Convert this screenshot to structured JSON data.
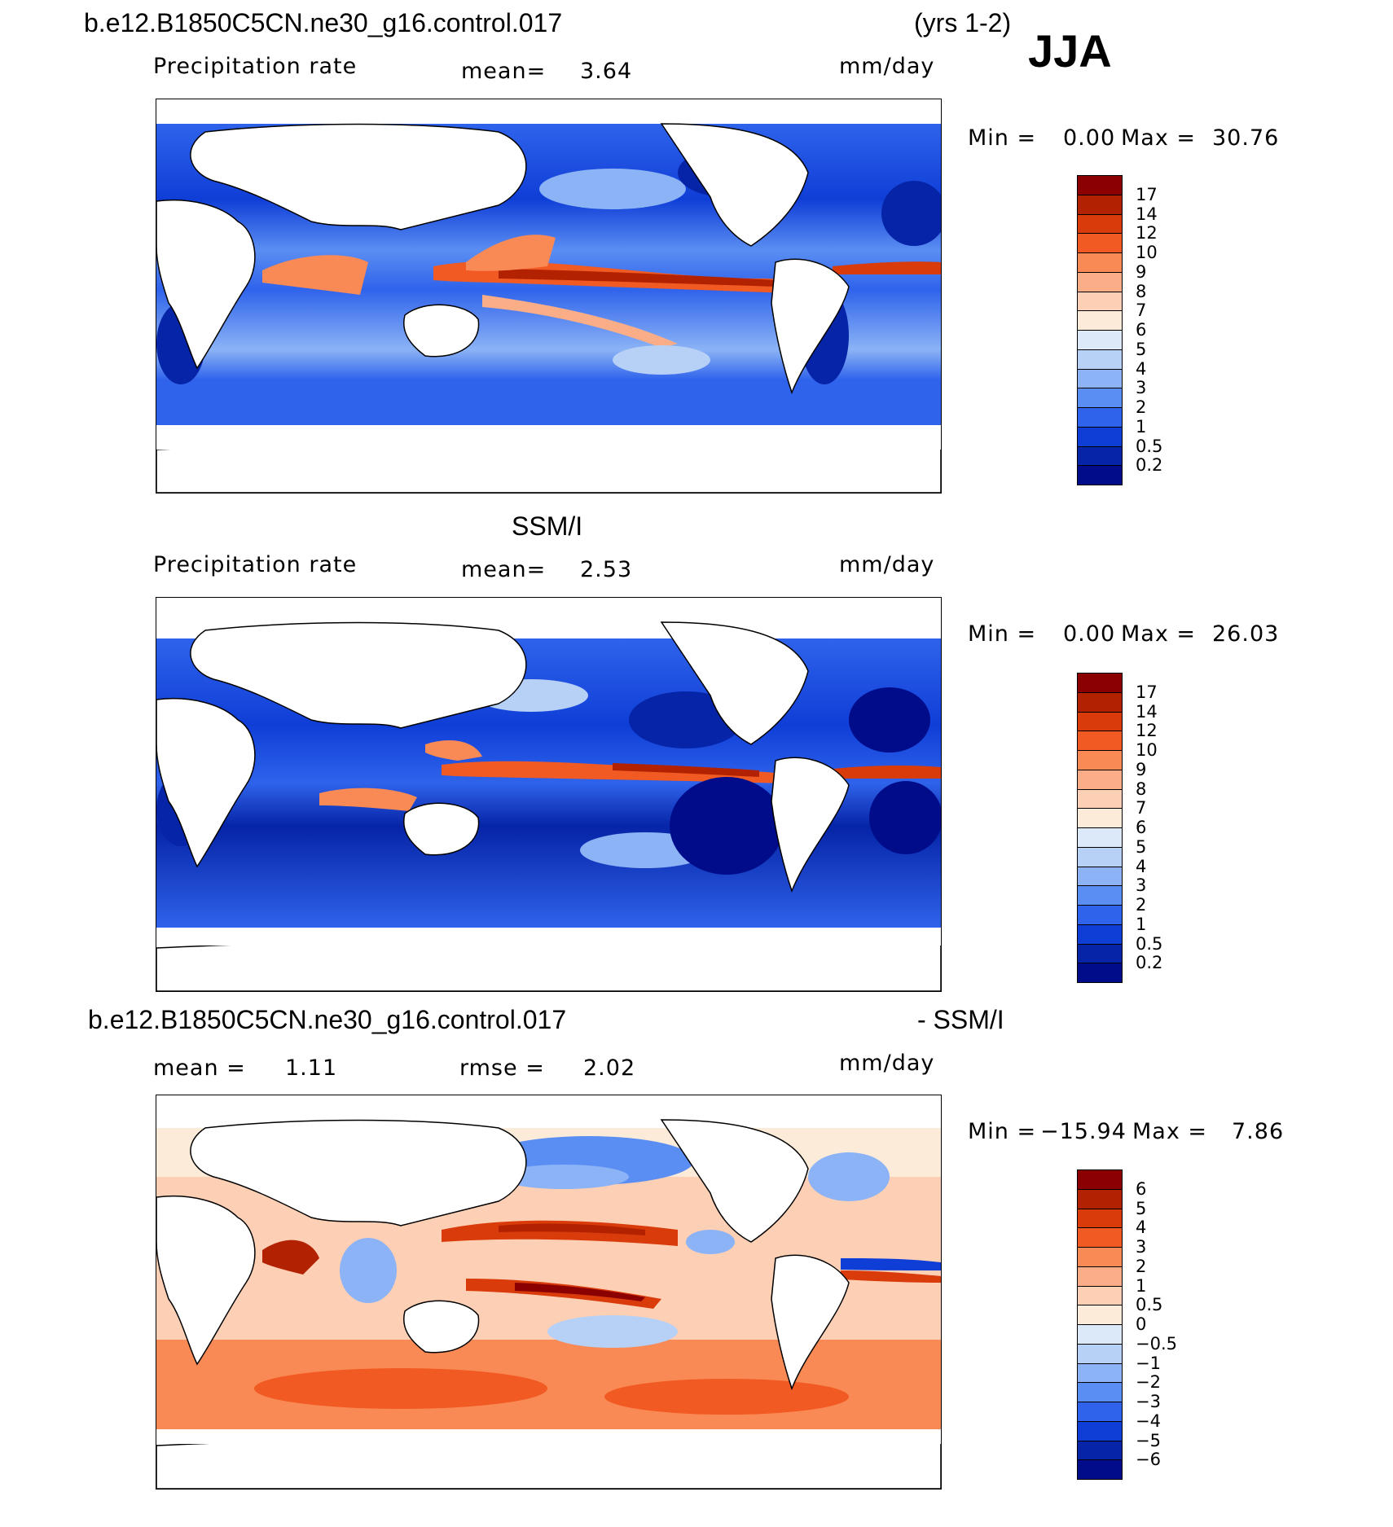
{
  "header": {
    "case_name": "b.e12.B1850C5CN.ne30_g16.control.017",
    "years": "(yrs 1-2)",
    "season": "JJA"
  },
  "panels": [
    {
      "id": "model",
      "subtitle": "",
      "variable": "Precipitation rate",
      "mean_label": "mean=",
      "mean_value": "3.64",
      "units": "mm/day",
      "min_label": "Min =",
      "min_value": "0.00",
      "max_label": "Max =",
      "max_value": "30.76",
      "colorbar": {
        "labels": [
          "17",
          "14",
          "12",
          "10",
          "9",
          "8",
          "7",
          "6",
          "5",
          "4",
          "3",
          "2",
          "1",
          "0.5",
          "0.2"
        ],
        "colors": [
          "#8b0000",
          "#b22200",
          "#d93b0a",
          "#f15a22",
          "#f98a55",
          "#fbad88",
          "#fdd0b6",
          "#fdebda",
          "#dce9f8",
          "#b6d0f6",
          "#8bb3f6",
          "#5b8ef2",
          "#2f63eb",
          "#0f3ed7",
          "#0624a7",
          "#000c8a"
        ]
      }
    },
    {
      "id": "obs",
      "subtitle": "SSM/I",
      "variable": "Precipitation rate",
      "mean_label": "mean=",
      "mean_value": "2.53",
      "units": "mm/day",
      "min_label": "Min =",
      "min_value": "0.00",
      "max_label": "Max =",
      "max_value": "26.03",
      "colorbar": {
        "labels": [
          "17",
          "14",
          "12",
          "10",
          "9",
          "8",
          "7",
          "6",
          "5",
          "4",
          "3",
          "2",
          "1",
          "0.5",
          "0.2"
        ],
        "colors": [
          "#8b0000",
          "#b22200",
          "#d93b0a",
          "#f15a22",
          "#f98a55",
          "#fbad88",
          "#fdd0b6",
          "#fdebda",
          "#dce9f8",
          "#b6d0f6",
          "#8bb3f6",
          "#5b8ef2",
          "#2f63eb",
          "#0f3ed7",
          "#0624a7",
          "#000c8a"
        ]
      }
    },
    {
      "id": "diff",
      "title_left": "b.e12.B1850C5CN.ne30_g16.control.017",
      "title_right": "- SSM/I",
      "mean_label": "mean =",
      "mean_value": "1.11",
      "rmse_label": "rmse =",
      "rmse_value": "2.02",
      "units": "mm/day",
      "min_label": "Min =",
      "min_value": "−15.94",
      "max_label": "Max =",
      "max_value": "7.86",
      "colorbar": {
        "labels": [
          "6",
          "5",
          "4",
          "3",
          "2",
          "1",
          "0.5",
          "0",
          "−0.5",
          "−1",
          "−2",
          "−3",
          "−4",
          "−5",
          "−6"
        ],
        "colors": [
          "#8b0000",
          "#b22200",
          "#d93b0a",
          "#f15a22",
          "#f98a55",
          "#fbad88",
          "#fdd0b6",
          "#fdebda",
          "#dce9f8",
          "#b6d0f6",
          "#8bb3f6",
          "#5b8ef2",
          "#2f63eb",
          "#0f3ed7",
          "#0624a7",
          "#000c8a"
        ]
      }
    }
  ]
}
